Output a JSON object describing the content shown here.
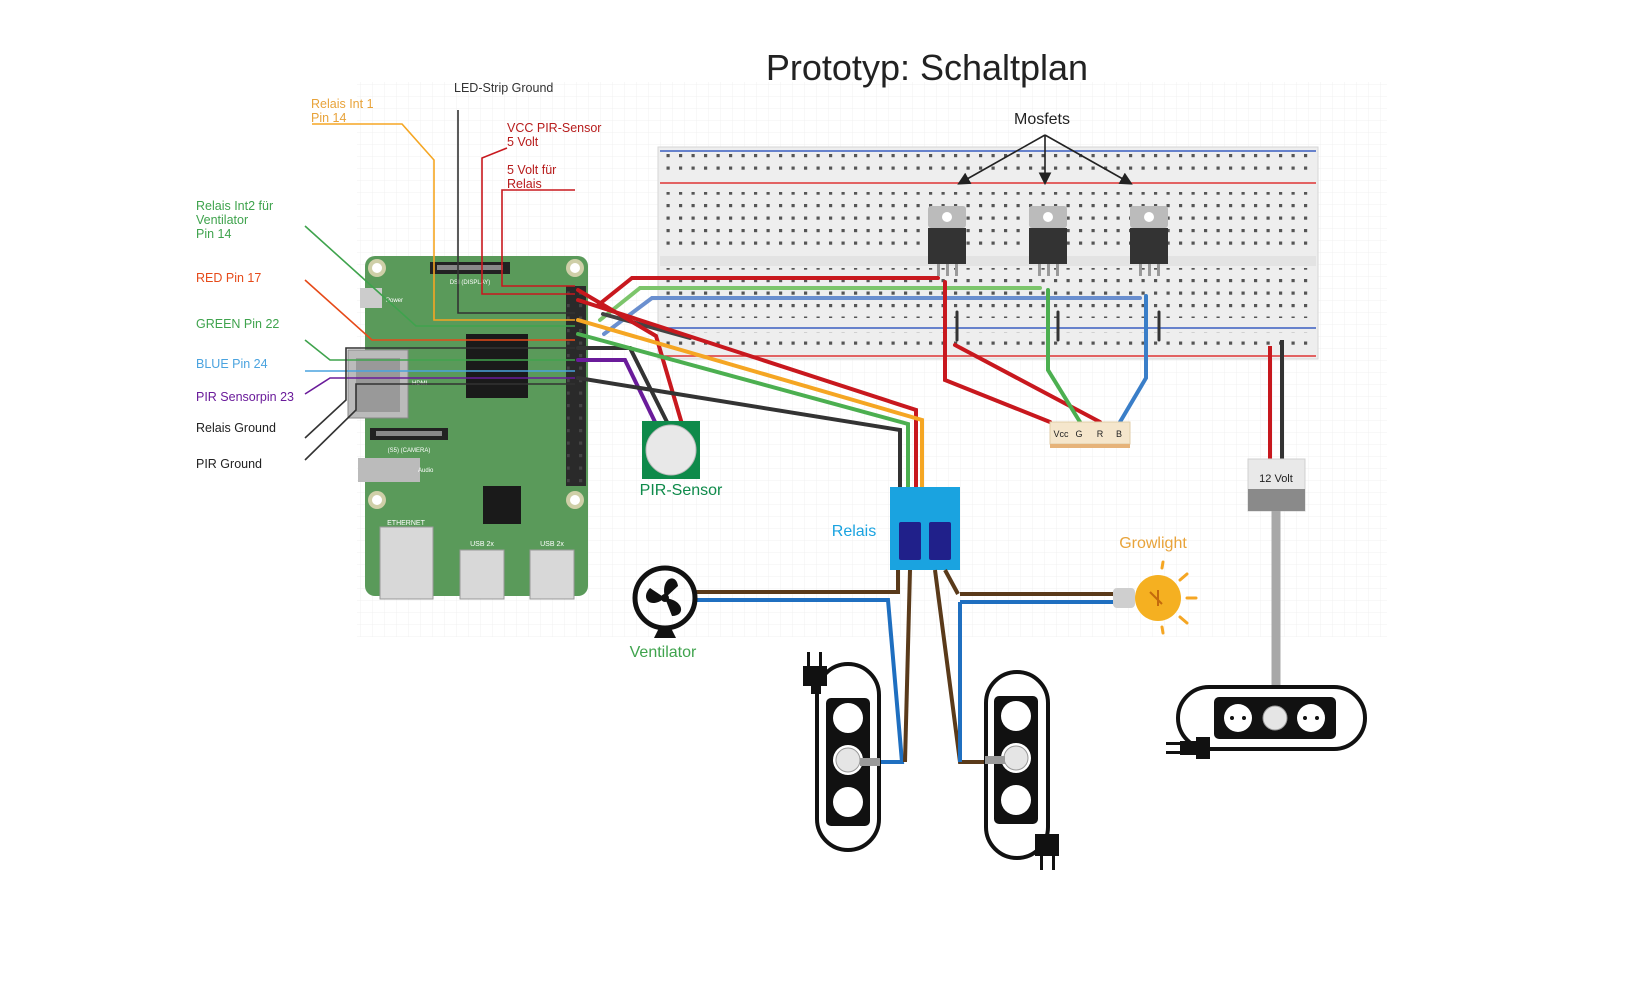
{
  "title": "Prototyp: Schaltplan",
  "pin_labels": {
    "led_strip_ground": "LED-Strip Ground",
    "relais_int1": [
      "Relais Int 1",
      "Pin 14"
    ],
    "vcc_pir": [
      "VCC PIR-Sensor",
      "5 Volt"
    ],
    "five_volt_relais": [
      "5 Volt für",
      "Relais"
    ],
    "relais_int2": [
      "Relais Int2 für",
      "Ventilator",
      "Pin 14"
    ],
    "red_pin": "RED Pin 17",
    "green_pin": "GREEN Pin 22",
    "blue_pin": "BLUE Pin 24",
    "pir_sensorpin": "PIR Sensorpin 23",
    "relais_ground": "Relais Ground",
    "pir_ground": "PIR Ground"
  },
  "components": {
    "mosfets": "Mosfets",
    "pir_sensor": "PIR-Sensor",
    "relais": "Relais",
    "growlight": "Growlight",
    "ventilator": "Ventilator",
    "power_supply": "12 Volt",
    "rgb_connector": [
      "Vcc",
      "G",
      "R",
      "B"
    ]
  },
  "board_labels": {
    "ethernet": "ETHERNET",
    "usb_left": "USB 2x",
    "usb_right": "USB 2x",
    "hdmi": "HDMI",
    "camera": "(S5) (CAMERA)",
    "audio": "Audio",
    "power": "Power",
    "display": "DSI (DISPLAY)"
  },
  "colors": {
    "red": "#c8181e",
    "green": "#4caf50",
    "blue": "#3a7ec8",
    "orange": "#f5a623",
    "purple": "#6a1b9a",
    "black": "#333333",
    "brown": "#5a3a1a",
    "mains_blue": "#1f6fc0",
    "pi_green": "#5a9a5a",
    "relay_blue": "#1aa3e0",
    "label_red": "#b71c1c",
    "label_orange": "#e8a33a",
    "label_green": "#3fa34d",
    "label_blue": "#4aa3df",
    "label_purple": "#6a1b9a",
    "label_redpin": "#e64a19"
  }
}
